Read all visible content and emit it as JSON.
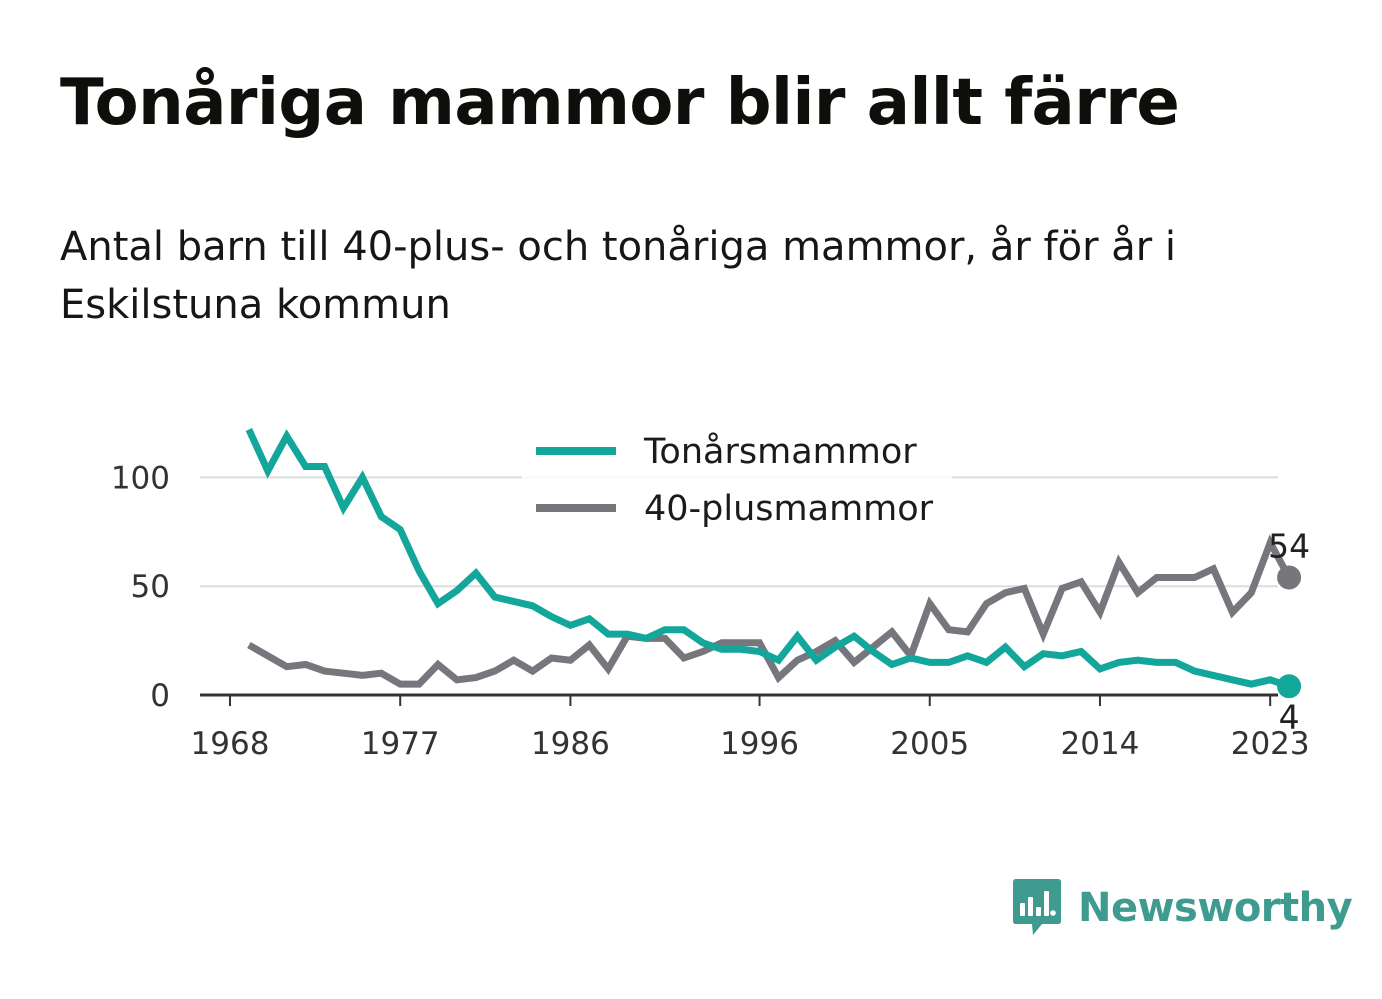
{
  "title": "Tonåriga mammor blir allt färre",
  "subtitle": "Antal barn till 40-plus- och tonåriga mammor, år för år i Eskilstuna kommun",
  "brand": {
    "name": "Newsworthy",
    "icon": "newsworthy-logo-icon",
    "color": "#3f9a90"
  },
  "chart_data": {
    "type": "line",
    "x": [
      1969,
      1970,
      1971,
      1972,
      1973,
      1974,
      1975,
      1976,
      1977,
      1978,
      1979,
      1980,
      1981,
      1982,
      1983,
      1984,
      1985,
      1986,
      1987,
      1988,
      1989,
      1990,
      1991,
      1992,
      1993,
      1994,
      1995,
      1996,
      1997,
      1998,
      1999,
      2000,
      2001,
      2002,
      2003,
      2004,
      2005,
      2006,
      2007,
      2008,
      2009,
      2010,
      2011,
      2012,
      2013,
      2014,
      2015,
      2016,
      2017,
      2018,
      2019,
      2020,
      2021,
      2022,
      2023,
      2024
    ],
    "series": [
      {
        "name": "Tonårsmammor",
        "color": "#13a69b",
        "values": [
          122,
          103,
          119,
          105,
          105,
          86,
          100,
          82,
          76,
          57,
          42,
          48,
          56,
          45,
          43,
          41,
          36,
          32,
          35,
          28,
          28,
          26,
          30,
          30,
          24,
          21,
          21,
          20,
          16,
          27,
          16,
          22,
          27,
          20,
          14,
          17,
          15,
          15,
          18,
          15,
          22,
          13,
          19,
          18,
          20,
          12,
          15,
          16,
          15,
          15,
          11,
          9,
          7,
          5,
          7,
          4
        ]
      },
      {
        "name": "40-plusmammor",
        "color": "#76767c",
        "values": [
          23,
          18,
          13,
          14,
          11,
          10,
          9,
          10,
          5,
          5,
          14,
          7,
          8,
          11,
          16,
          11,
          17,
          16,
          23,
          12,
          27,
          26,
          26,
          17,
          20,
          24,
          24,
          24,
          8,
          16,
          20,
          25,
          15,
          22,
          29,
          18,
          42,
          30,
          29,
          42,
          47,
          49,
          28,
          49,
          52,
          38,
          61,
          47,
          54,
          54,
          54,
          58,
          38,
          47,
          70,
          54
        ]
      }
    ],
    "xticks": [
      1968,
      1977,
      1986,
      1996,
      2005,
      2014,
      2023
    ],
    "yticks": [
      0,
      50,
      100
    ],
    "xlim": [
      1968,
      2025
    ],
    "ylim": [
      0,
      125
    ],
    "grid": true,
    "legend": "top-center",
    "end_labels": {
      "Tonårsmammor": "4",
      "40-plusmammor": "54"
    }
  }
}
